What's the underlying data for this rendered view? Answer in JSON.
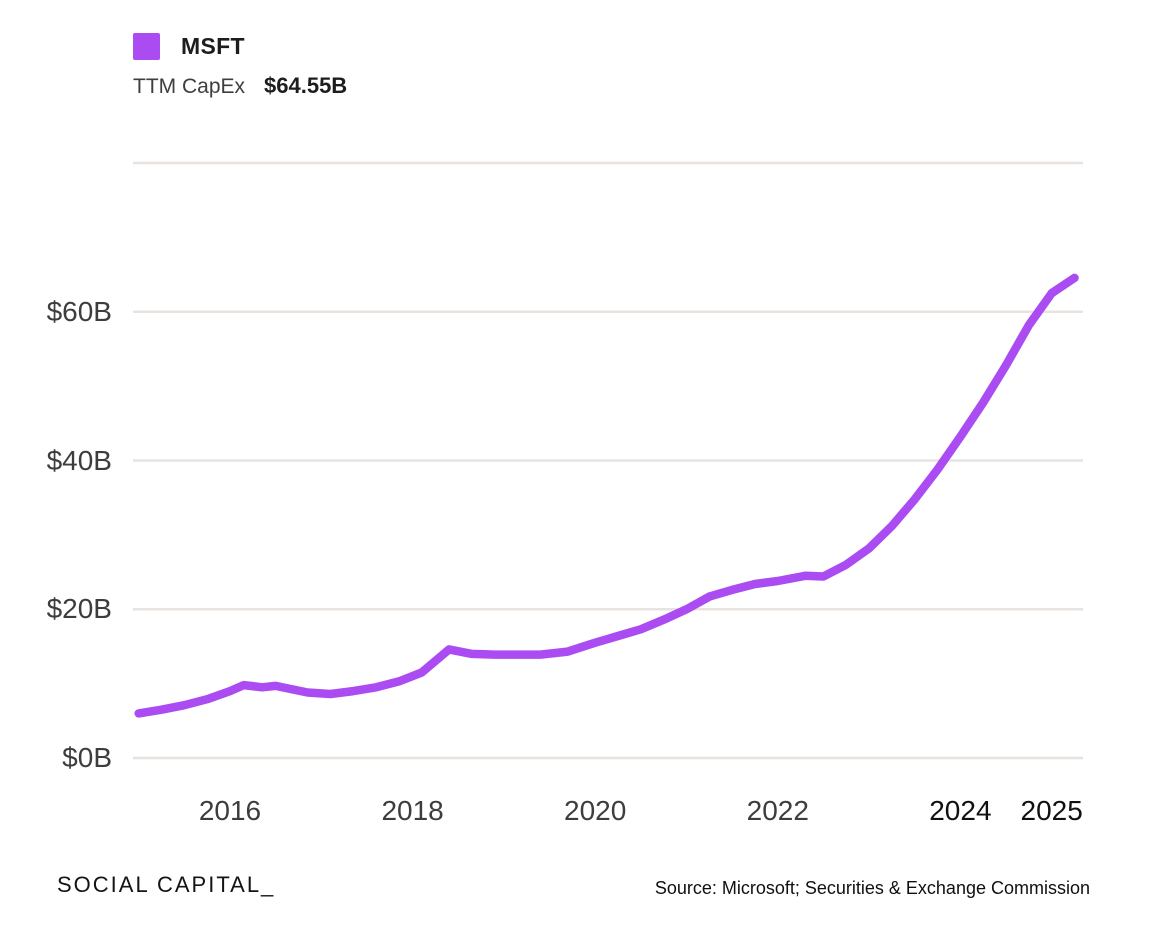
{
  "legend": {
    "series_label": "MSFT",
    "metric_label": "TTM CapEx",
    "metric_value": "$64.55B",
    "swatch_color": "#aa4cf2"
  },
  "chart_data": {
    "type": "line",
    "title": "MSFT TTM CapEx",
    "series": [
      {
        "name": "MSFT",
        "color": "#aa4cf2",
        "x": [
          2015.0,
          2015.25,
          2015.5,
          2015.75,
          2016.0,
          2016.15,
          2016.35,
          2016.5,
          2016.85,
          2017.1,
          2017.35,
          2017.6,
          2017.85,
          2018.1,
          2018.4,
          2018.65,
          2018.9,
          2019.4,
          2019.7,
          2020.0,
          2020.25,
          2020.5,
          2020.75,
          2021.0,
          2021.25,
          2021.5,
          2021.75,
          2022.0,
          2022.3,
          2022.5,
          2022.75,
          2023.0,
          2023.25,
          2023.5,
          2023.75,
          2024.0,
          2024.25,
          2024.5,
          2024.75,
          2025.0,
          2025.25
        ],
        "values": [
          6.0,
          6.5,
          7.1,
          7.9,
          9.0,
          9.8,
          9.5,
          9.7,
          8.8,
          8.6,
          9.0,
          9.5,
          10.3,
          11.5,
          14.6,
          14.0,
          13.9,
          13.9,
          14.3,
          15.5,
          16.4,
          17.3,
          18.6,
          20.0,
          21.7,
          22.6,
          23.4,
          23.8,
          24.5,
          24.4,
          26.0,
          28.2,
          31.2,
          34.8,
          38.8,
          43.2,
          47.8,
          52.8,
          58.2,
          62.5,
          64.55
        ]
      }
    ],
    "latest_value": 64.55,
    "xlabel": "",
    "ylabel": "",
    "xlim": [
      2014.95,
      2025.35
    ],
    "ylim": [
      0,
      80
    ],
    "grid": "horizontal",
    "gridline_values": [
      0,
      20,
      40,
      60,
      80
    ],
    "y_ticks": [
      {
        "label": "$0B",
        "value": 0
      },
      {
        "label": "$20B",
        "value": 20
      },
      {
        "label": "$40B",
        "value": 40
      },
      {
        "label": "$60B",
        "value": 60
      }
    ],
    "x_ticks": [
      {
        "label": "2016",
        "year": 2016,
        "emphasized": false
      },
      {
        "label": "2018",
        "year": 2018,
        "emphasized": false
      },
      {
        "label": "2020",
        "year": 2020,
        "emphasized": false
      },
      {
        "label": "2022",
        "year": 2022,
        "emphasized": false
      },
      {
        "label": "2024",
        "year": 2024,
        "emphasized": true
      },
      {
        "label": "2025",
        "year": 2025,
        "emphasized": true
      }
    ],
    "legend_position": "top-left"
  },
  "footer": {
    "brand": "SOCIAL CAPITAL_",
    "source": "Source: Microsoft; Securities & Exchange Commission"
  },
  "colors": {
    "line": "#aa4cf2",
    "gridline": "#e8e3df",
    "axis_text": "#3d3d3d",
    "axis_text_emphasized": "#111111",
    "background": "#ffffff"
  }
}
